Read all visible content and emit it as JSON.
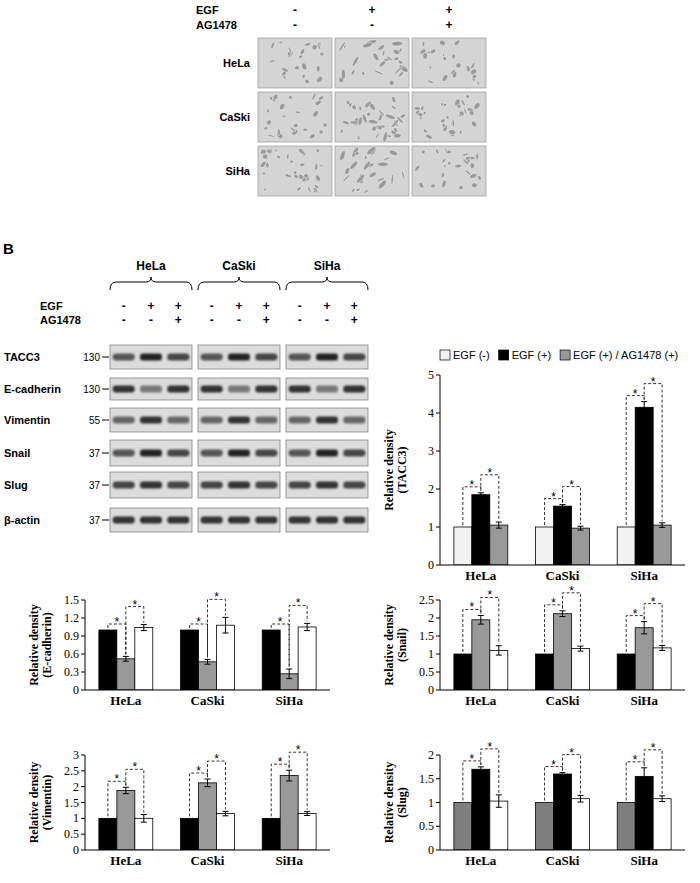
{
  "panel_label": "B",
  "panel_a": {
    "treatments": [
      {
        "label": "EGF",
        "signs": [
          "-",
          "+",
          "+"
        ]
      },
      {
        "label": "AG1478",
        "signs": [
          "-",
          "-",
          "+"
        ]
      }
    ],
    "rows": [
      "HeLa",
      "CaSki",
      "SiHa"
    ]
  },
  "panel_b_blot": {
    "cell_lines": [
      "HeLa",
      "CaSki",
      "SiHa"
    ],
    "treatments": [
      {
        "label": "EGF",
        "signs": [
          "-",
          "+",
          "+"
        ]
      },
      {
        "label": "AG1478",
        "signs": [
          "-",
          "-",
          "+"
        ]
      }
    ],
    "proteins": [
      {
        "name": "TACC3",
        "marker": 130
      },
      {
        "name": "E-cadherin",
        "marker": 130
      },
      {
        "name": "Vimentin",
        "marker": 55
      },
      {
        "name": "Snail",
        "marker": 37
      },
      {
        "name": "Slug",
        "marker": 37
      },
      {
        "name": "β-actin",
        "marker": 37
      }
    ]
  },
  "chart_data": [
    {
      "type": "bar",
      "y_label": "Relative density (TACC3)",
      "categories": [
        "HeLa",
        "CaSki",
        "SiHa"
      ],
      "series": [
        {
          "name": "EGF (-)",
          "color": "#f2f2f2",
          "values": [
            1,
            1,
            1
          ]
        },
        {
          "name": "EGF (+)",
          "color": "#000000",
          "values": [
            1.85,
            1.55,
            4.15
          ],
          "errors": [
            0.05,
            0.04,
            0.15
          ]
        },
        {
          "name": "EGF (+) / AG1478 (+)",
          "color": "#999999",
          "values": [
            1.05,
            0.97,
            1.05
          ],
          "errors": [
            0.08,
            0.05,
            0.06
          ]
        }
      ],
      "ylim": [
        0,
        5
      ],
      "yticks": [
        0,
        1,
        2,
        3,
        4,
        5
      ],
      "legend": "top",
      "annotations": [
        {
          "text": "*",
          "series": [
            0,
            1
          ],
          "category": 0
        },
        {
          "text": "*",
          "series": [
            1,
            2
          ],
          "category": 0
        },
        {
          "text": "*",
          "series": [
            0,
            1
          ],
          "category": 1
        },
        {
          "text": "*",
          "series": [
            1,
            2
          ],
          "category": 1
        },
        {
          "text": "*",
          "series": [
            0,
            1
          ],
          "category": 2
        },
        {
          "text": "*",
          "series": [
            1,
            2
          ],
          "category": 2
        }
      ]
    },
    {
      "type": "bar",
      "y_label": "Relative density (E-cadherin)",
      "categories": [
        "HeLa",
        "CaSki",
        "SiHa"
      ],
      "series": [
        {
          "color": "#000000",
          "values": [
            1,
            1,
            1
          ]
        },
        {
          "color": "#999999",
          "values": [
            0.52,
            0.47,
            0.27
          ],
          "errors": [
            0.04,
            0.04,
            0.08
          ]
        },
        {
          "color": "#ffffff",
          "values": [
            1.04,
            1.08,
            1.05
          ],
          "errors": [
            0.05,
            0.13,
            0.06
          ]
        }
      ],
      "ylim": [
        0,
        1.5
      ],
      "yticks": [
        0,
        0.3,
        0.6,
        0.9,
        1.2,
        1.5
      ],
      "annotations": [
        {
          "text": "*",
          "series": [
            0,
            1
          ],
          "category": 0
        },
        {
          "text": "*",
          "series": [
            1,
            2
          ],
          "category": 0
        },
        {
          "text": "*",
          "series": [
            0,
            1
          ],
          "category": 1
        },
        {
          "text": "*",
          "series": [
            1,
            2
          ],
          "category": 1
        },
        {
          "text": "*",
          "series": [
            0,
            1
          ],
          "category": 2
        },
        {
          "text": "*",
          "series": [
            1,
            2
          ],
          "category": 2
        }
      ]
    },
    {
      "type": "bar",
      "y_label": "Relative density (Snail)",
      "categories": [
        "HeLa",
        "CaSki",
        "SiHa"
      ],
      "series": [
        {
          "color": "#000000",
          "values": [
            1,
            1,
            1
          ]
        },
        {
          "color": "#999999",
          "values": [
            1.95,
            2.12,
            1.73
          ],
          "errors": [
            0.12,
            0.08,
            0.17
          ]
        },
        {
          "color": "#ffffff",
          "values": [
            1.1,
            1.15,
            1.17
          ],
          "errors": [
            0.13,
            0.07,
            0.07
          ]
        }
      ],
      "ylim": [
        0,
        2.5
      ],
      "yticks": [
        0,
        0.5,
        1,
        1.5,
        2,
        2.5
      ],
      "annotations": [
        {
          "text": "*",
          "series": [
            0,
            1
          ],
          "category": 0
        },
        {
          "text": "*",
          "series": [
            1,
            2
          ],
          "category": 0
        },
        {
          "text": "*",
          "series": [
            0,
            1
          ],
          "category": 1
        },
        {
          "text": "*",
          "series": [
            1,
            2
          ],
          "category": 1
        },
        {
          "text": "*",
          "series": [
            0,
            1
          ],
          "category": 2
        },
        {
          "text": "*",
          "series": [
            1,
            2
          ],
          "category": 2
        }
      ]
    },
    {
      "type": "bar",
      "y_label": "Relative density (Vimentin)",
      "categories": [
        "HeLa",
        "CaSki",
        "SiHa"
      ],
      "series": [
        {
          "color": "#000000",
          "values": [
            1,
            1,
            1
          ]
        },
        {
          "color": "#999999",
          "values": [
            1.88,
            2.12,
            2.35
          ],
          "errors": [
            0.1,
            0.12,
            0.17
          ]
        },
        {
          "color": "#ffffff",
          "values": [
            1.0,
            1.15,
            1.15
          ],
          "errors": [
            0.12,
            0.07,
            0.06
          ]
        }
      ],
      "ylim": [
        0,
        3
      ],
      "yticks": [
        0,
        0.5,
        1,
        1.5,
        2,
        2.5,
        3
      ],
      "annotations": [
        {
          "text": "*",
          "series": [
            0,
            1
          ],
          "category": 0
        },
        {
          "text": "*",
          "series": [
            1,
            2
          ],
          "category": 0
        },
        {
          "text": "*",
          "series": [
            0,
            1
          ],
          "category": 1
        },
        {
          "text": "*",
          "series": [
            1,
            2
          ],
          "category": 1
        },
        {
          "text": "*",
          "series": [
            0,
            1
          ],
          "category": 2
        },
        {
          "text": "*",
          "series": [
            1,
            2
          ],
          "category": 2
        }
      ]
    },
    {
      "type": "bar",
      "y_label": "Relative density (Slug)",
      "categories": [
        "HeLa",
        "CaSki",
        "SiHa"
      ],
      "series": [
        {
          "color": "#7f7f7f",
          "values": [
            1,
            1,
            1
          ]
        },
        {
          "color": "#000000",
          "values": [
            1.7,
            1.6,
            1.55
          ],
          "errors": [
            0.05,
            0.03,
            0.18
          ]
        },
        {
          "color": "#ffffff",
          "values": [
            1.03,
            1.08,
            1.08
          ],
          "errors": [
            0.13,
            0.07,
            0.06
          ]
        }
      ],
      "ylim": [
        0,
        2
      ],
      "yticks": [
        0,
        0.5,
        1,
        1.5,
        2
      ],
      "annotations": [
        {
          "text": "*",
          "series": [
            0,
            1
          ],
          "category": 0
        },
        {
          "text": "*",
          "series": [
            1,
            2
          ],
          "category": 0
        },
        {
          "text": "*",
          "series": [
            0,
            1
          ],
          "category": 1
        },
        {
          "text": "*",
          "series": [
            1,
            2
          ],
          "category": 1
        },
        {
          "text": "*",
          "series": [
            0,
            1
          ],
          "category": 2
        },
        {
          "text": "*",
          "series": [
            1,
            2
          ],
          "category": 2
        }
      ]
    }
  ]
}
